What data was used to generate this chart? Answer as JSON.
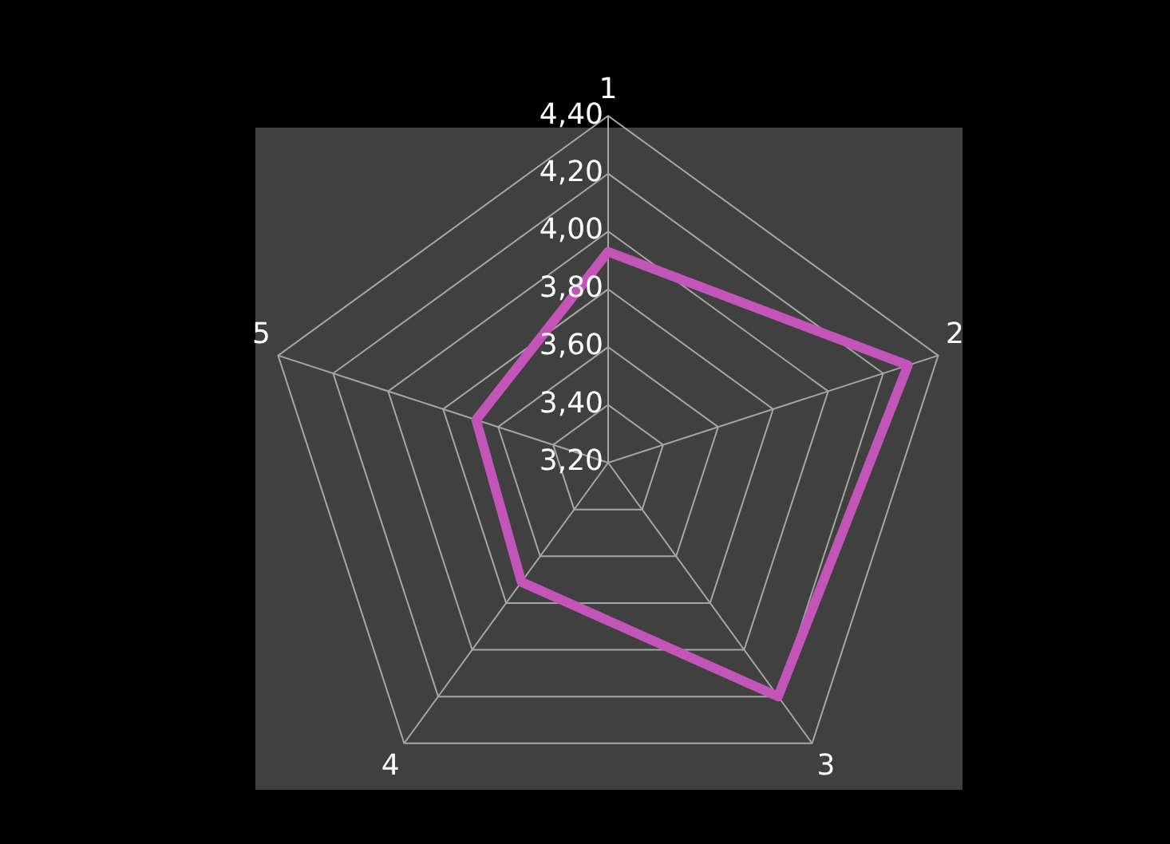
{
  "chart_data": {
    "type": "radar",
    "categories": [
      "1",
      "2",
      "3",
      "4",
      "5"
    ],
    "series": [
      {
        "color": "#c455b8",
        "values": [
          3.93,
          4.29,
          4.2,
          3.71,
          3.68
        ]
      }
    ],
    "ylim": [
      3.2,
      4.4
    ],
    "yticks": [
      {
        "value": 3.2,
        "label": "3,20"
      },
      {
        "value": 3.4,
        "label": "3,40"
      },
      {
        "value": 3.6,
        "label": "3,60"
      },
      {
        "value": 3.8,
        "label": "3,80"
      },
      {
        "value": 4.0,
        "label": "4,00"
      },
      {
        "value": 4.2,
        "label": "4,20"
      },
      {
        "value": 4.4,
        "label": "4,40"
      }
    ],
    "grid": true,
    "legend": false,
    "marker": "none"
  }
}
